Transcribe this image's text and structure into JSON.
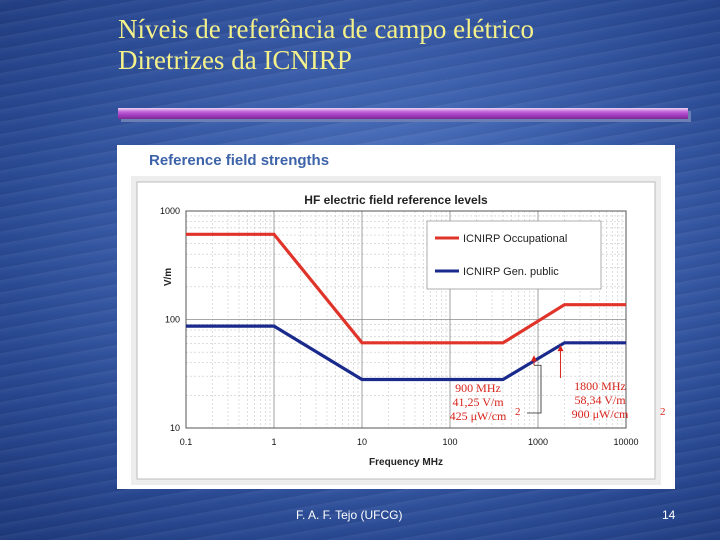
{
  "slide": {
    "title_line1": "Níveis de referência de campo elétrico",
    "title_line2": "Diretrizes da ICNIRP",
    "footer_author": "F. A. F. Tejo (UFCG)",
    "page_number": "14"
  },
  "colors": {
    "title": "#f4f08a",
    "occupational": "#e0342a",
    "general_public": "#1a2a8c",
    "callout": "#d8231b"
  },
  "chart_data": {
    "type": "line",
    "header": "Reference field strengths",
    "title": "HF electric field reference levels",
    "xlabel": "Frequency MHz",
    "ylabel": "V/m",
    "xscale": "log",
    "yscale": "log",
    "xlim": [
      0.1,
      10000
    ],
    "ylim": [
      10,
      1000
    ],
    "xticks": [
      "0.1",
      "1",
      "10",
      "100",
      "1000",
      "10000"
    ],
    "yticks": [
      "10",
      "100",
      "1000"
    ],
    "grid": true,
    "legend_position": "top-right",
    "series": [
      {
        "name": "ICNIRP Occupational",
        "color": "#e0342a",
        "x": [
          0.1,
          1,
          10,
          400,
          2000,
          10000
        ],
        "y": [
          610,
          610,
          61,
          61,
          137,
          137
        ]
      },
      {
        "name": "ICNIRP Gen. public",
        "color": "#1a2a8c",
        "x": [
          0.1,
          1,
          10,
          400,
          2000,
          10000
        ],
        "y": [
          87,
          87,
          28,
          28,
          61,
          61
        ]
      }
    ],
    "annotations": [
      {
        "lines": [
          "900 MHz",
          "41,25 V/m",
          "425 μW/cm"
        ],
        "superscript": "2"
      },
      {
        "lines": [
          "1800 MHz",
          "58,34 V/m",
          "900 μW/cm"
        ],
        "superscript": "2"
      }
    ]
  }
}
